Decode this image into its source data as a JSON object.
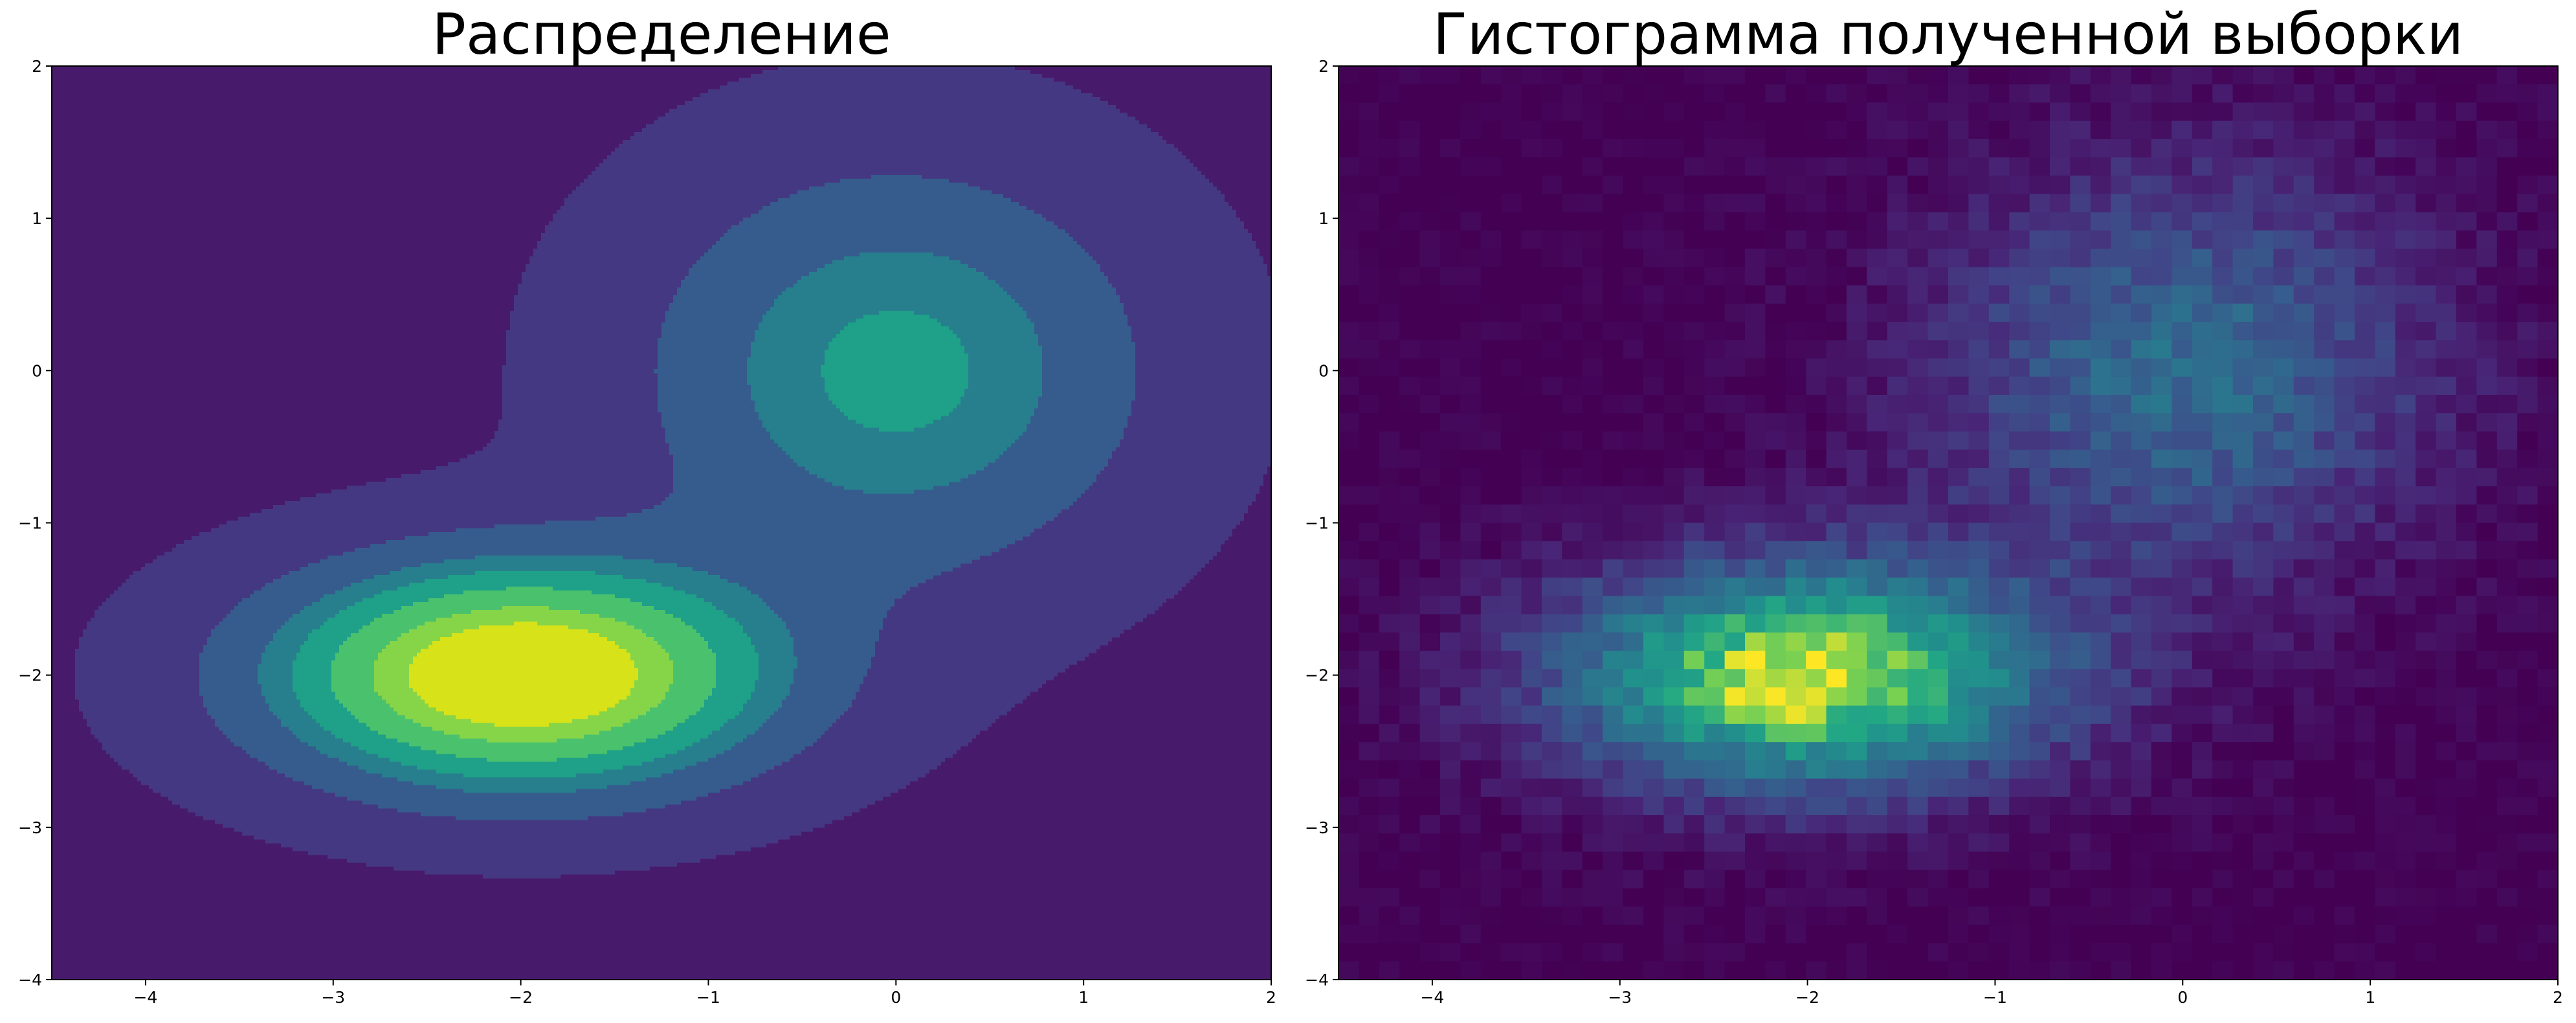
{
  "chart_data": [
    {
      "type": "contour",
      "title": "Распределение",
      "xlabel": "",
      "ylabel": "",
      "xlim": [
        -4.5,
        2
      ],
      "ylim": [
        -4,
        2
      ],
      "x_ticks": [
        -4,
        -3,
        -2,
        -1,
        0,
        1,
        2
      ],
      "x_tick_labels": [
        "−4",
        "−3",
        "−2",
        "−1",
        "0",
        "1",
        "2"
      ],
      "y_ticks": [
        -4,
        -3,
        -2,
        -1,
        0,
        1,
        2
      ],
      "y_tick_labels": [
        "−4",
        "−3",
        "−2",
        "−1",
        "0",
        "1",
        "2"
      ],
      "grid": false,
      "colormap": "viridis",
      "background_color": "#481a6c",
      "density": {
        "components": [
          {
            "mean": [
              -2.0,
              -2.0
            ],
            "std": [
              0.9,
              0.5
            ],
            "weight": 1.0
          },
          {
            "mean": [
              0.0,
              0.0
            ],
            "std": [
              0.9,
              0.9
            ],
            "weight": 0.44
          }
        ]
      },
      "levels": [
        {
          "threshold": 0.03,
          "color": "#453882"
        },
        {
          "threshold": 0.16,
          "color": "#365c8d"
        },
        {
          "threshold": 0.3,
          "color": "#277f8e"
        },
        {
          "threshold": 0.4,
          "color": "#1fa088"
        },
        {
          "threshold": 0.53,
          "color": "#4ac16d"
        },
        {
          "threshold": 0.68,
          "color": "#86d549"
        },
        {
          "threshold": 0.8,
          "color": "#d8e219"
        }
      ]
    },
    {
      "type": "heatmap",
      "title": "Гистограмма полученной выборки",
      "xlabel": "",
      "ylabel": "",
      "xlim": [
        -4.5,
        2
      ],
      "ylim": [
        -4,
        2
      ],
      "x_ticks": [
        -4,
        -3,
        -2,
        -1,
        0,
        1,
        2
      ],
      "x_tick_labels": [
        "−4",
        "−3",
        "−2",
        "−1",
        "0",
        "1",
        "2"
      ],
      "y_ticks": [
        -4,
        -3,
        -2,
        -1,
        0,
        1,
        2
      ],
      "y_tick_labels": [
        "−4",
        "−3",
        "−2",
        "−1",
        "0",
        "1",
        "2"
      ],
      "grid": false,
      "colormap": "viridis",
      "bins": [
        60,
        50
      ],
      "density": {
        "components": [
          {
            "mean": [
              -2.0,
              -2.0
            ],
            "std": [
              0.9,
              0.5
            ],
            "weight": 1.0
          },
          {
            "mean": [
              0.0,
              0.0
            ],
            "std": [
              0.9,
              0.9
            ],
            "weight": 0.44
          }
        ]
      },
      "noise_amplitude": 0.09,
      "colorscale": [
        [
          0.0,
          "#440154"
        ],
        [
          0.13,
          "#482475"
        ],
        [
          0.25,
          "#414487"
        ],
        [
          0.38,
          "#355f8d"
        ],
        [
          0.5,
          "#2a788e"
        ],
        [
          0.63,
          "#21918c"
        ],
        [
          0.75,
          "#22a884"
        ],
        [
          0.88,
          "#7ad151"
        ],
        [
          1.0,
          "#fde725"
        ]
      ]
    }
  ]
}
